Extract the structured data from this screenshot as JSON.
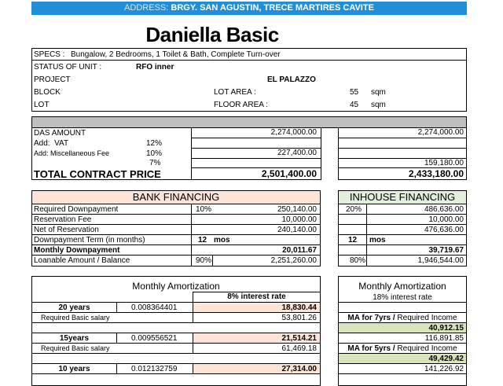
{
  "header": {
    "address_label": "ADDRESS:",
    "address": "BRGY. SAN AGUSTIN, TRECE MARTIRES CAVITE",
    "title": "Daniella Basic"
  },
  "specs": {
    "specs_label": "SPECS :",
    "specs": "Bungalow, 2 Bedrooms, 1 Toilet & Bath, Complete Turn-over",
    "status_label": "STATUS OF UNIT :",
    "status": "RFO inner",
    "project_label": "PROJECT",
    "project": "EL PALAZZO",
    "block_label": "BLOCK",
    "lot_area_label": "LOT AREA :",
    "lot_area": "55",
    "lot_area_unit": "sqm",
    "lot_label": "LOT",
    "floor_area_label": "FLOOR AREA :",
    "floor_area": "45",
    "floor_area_unit": "sqm"
  },
  "price": {
    "das_label": "DAS AMOUNT",
    "das_bank": "2,274,000.00",
    "das_inhouse": "2,274,000.00",
    "vat_label": "Add:  VAT",
    "vat_rate": "12%",
    "misc_label": "Add: Miscellaneous Fee",
    "misc_rate_bank": "10%",
    "misc_bank": "227,400.00",
    "misc_rate_inhouse": "7%",
    "misc_inhouse": "159,180.00",
    "total_label": "TOTAL CONTRACT PRICE",
    "total_bank": "2,501,400.00",
    "total_inhouse": "2,433,180.00"
  },
  "bank": {
    "title": "BANK FINANCING",
    "downpayment_label": "Required Downpayment",
    "downpayment_rate": "10%",
    "downpayment": "250,140.00",
    "reservation_label": "Reservation Fee",
    "reservation": "10,000.00",
    "net_label": "Net of Reservation",
    "net": "240,140.00",
    "term_label": "Downpayment Term (in months)",
    "term": "12",
    "term_unit": "mos",
    "monthly_label": "Monthly Downpayment",
    "monthly": "20,011.67",
    "loan_label": "Loanable Amount / Balance",
    "loan_rate": "90%",
    "loan": "2,251,260.00"
  },
  "inhouse": {
    "title": "INHOUSE FINANCING",
    "downpayment_rate": "20%",
    "downpayment": "486,636.00",
    "reservation": "10,000.00",
    "net": "476,636.00",
    "term": "12",
    "term_unit": "mos",
    "monthly": "39,719.67",
    "loan_rate": "80%",
    "loan": "1,946,544.00"
  },
  "bank_amortization": {
    "title": "Monthly Amortization",
    "rate": "8% interest rate",
    "terms": [
      {
        "years": "20 years",
        "factor": "0.008364401",
        "amount": "18,830.44",
        "salary_label": "Required Basic salary",
        "salary": "53,801.26"
      },
      {
        "years": "15years",
        "factor": "0.009556521",
        "amount": "21,514.21",
        "salary_label": "Required Basic salary",
        "salary": "61,469.18"
      },
      {
        "years": "10 years",
        "factor": "0.012132759",
        "amount": "27,314.00"
      }
    ]
  },
  "inhouse_amortization": {
    "title": "Monthly Amortization",
    "rate": "18% interest rate",
    "terms": [
      {
        "label_bold": "MA for 7yrs /",
        "label": "Required Income",
        "amount": "40,912.15",
        "income": "116,891.85"
      },
      {
        "label_bold": "MA for 5yrs /",
        "label": "Required Income",
        "amount": "49,429.42",
        "income": "141,226.92"
      }
    ]
  }
}
